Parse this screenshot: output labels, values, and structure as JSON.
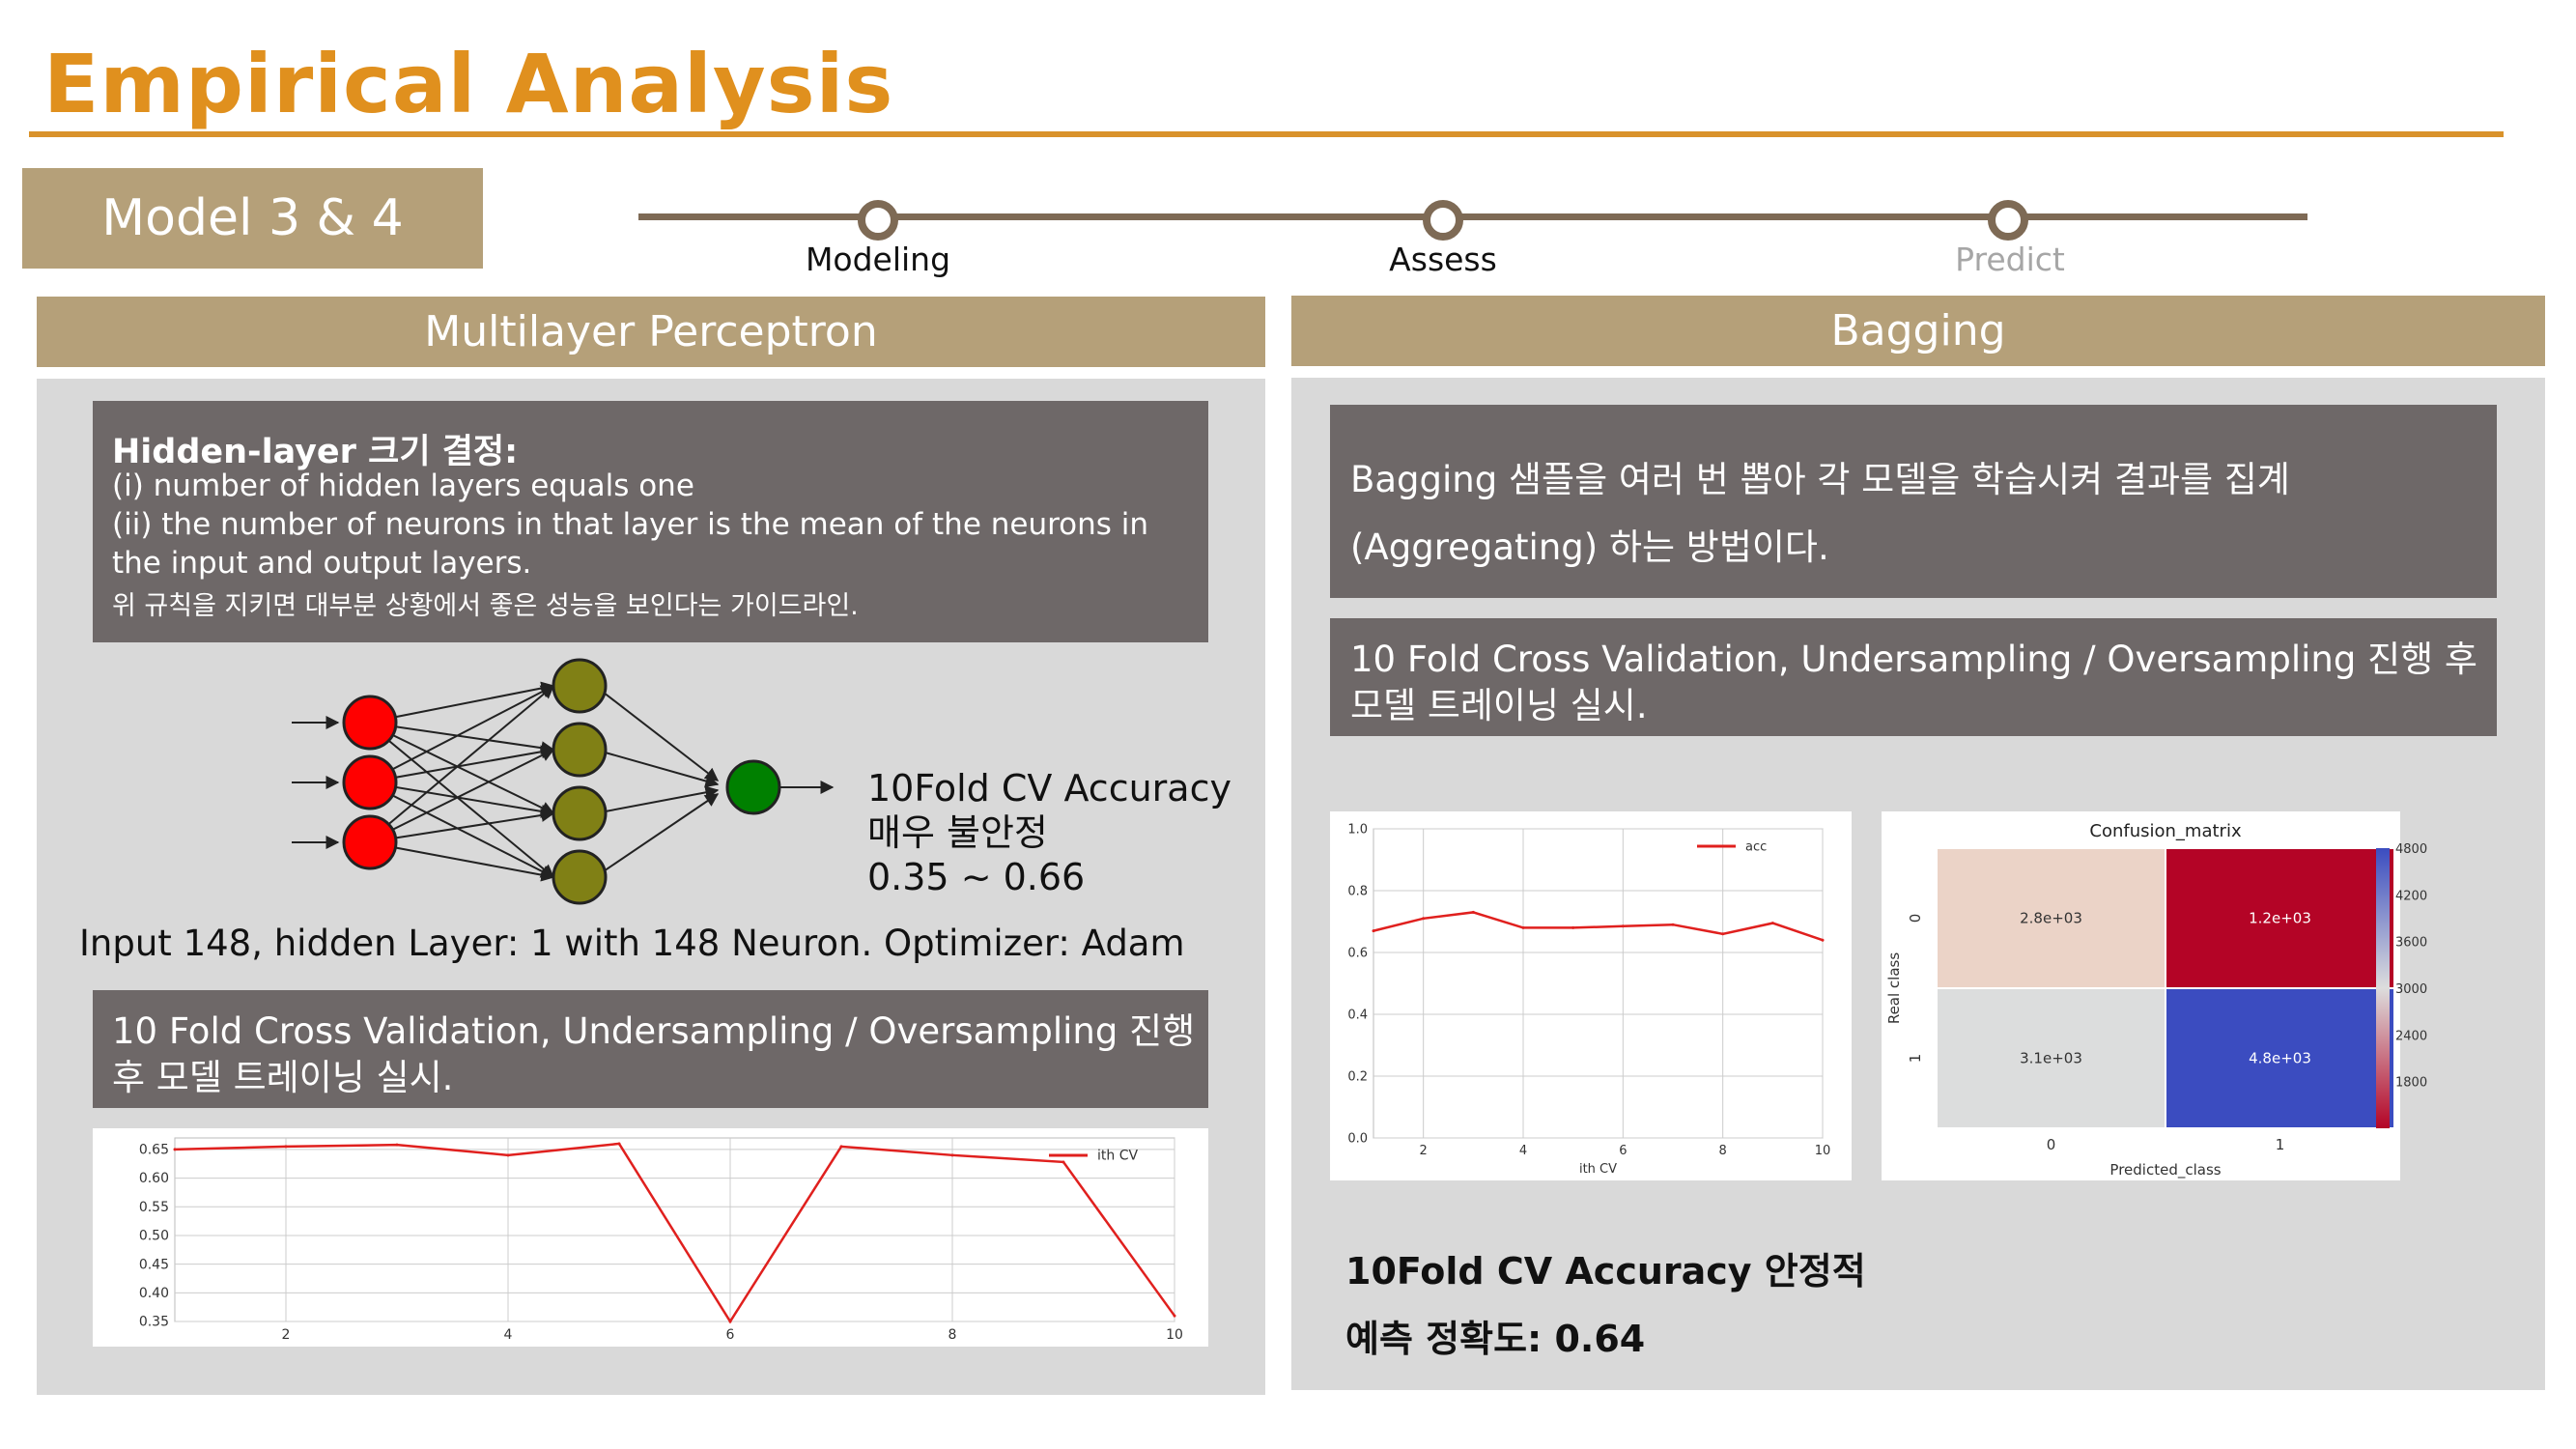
{
  "page": {
    "title": "Empirical Analysis",
    "model_tag": "Model 3 & 4"
  },
  "timeline": {
    "steps": [
      {
        "label": "Modeling",
        "state": "active"
      },
      {
        "label": "Assess",
        "state": "active"
      },
      {
        "label": "Predict",
        "state": "inactive"
      }
    ]
  },
  "left": {
    "header": "Multilayer Perceptron",
    "rule_box": {
      "title": "Hidden-layer 크기 결정:",
      "line1": "(i) number of hidden layers equals one",
      "line2": "(ii) the number of neurons in that layer is the mean of the neurons in",
      "line3": "the input and output layers.",
      "note": "위 규칙을 지키면 대부분 상황에서 좋은 성능을 보인다는 가이드라인."
    },
    "cv_note": {
      "line1": "10Fold CV Accuracy",
      "line2": "매우 불안정",
      "line3": "0.35 ~ 0.66"
    },
    "config": "Input 148, hidden Layer: 1 with 148 Neuron. Optimizer: Adam",
    "training_box": {
      "line1": "10 Fold Cross Validation, Undersampling / Oversampling 진행",
      "line2": "후 모델 트레이닝 실시."
    }
  },
  "right": {
    "header": "Bagging",
    "desc_box": {
      "line1": "Bagging 샘플을 여러 번 뽑아 각 모델을 학습시켜 결과를 집계",
      "line2": "(Aggregating) 하는 방법이다."
    },
    "training_box": {
      "line1": "10 Fold Cross Validation, Undersampling / Oversampling 진행 후",
      "line2": "모델 트레이닝 실시."
    },
    "summary": {
      "line1": "10Fold CV Accuracy 안정적",
      "line2": "예측 정확도: 0.64"
    }
  },
  "chart_data": [
    {
      "type": "line",
      "xlabel": "",
      "ylabel": "",
      "xlim": [
        1,
        10
      ],
      "ylim": [
        0.35,
        0.67
      ],
      "x_ticks": [
        "2",
        "4",
        "6",
        "8",
        "10"
      ],
      "y_ticks": [
        "0.65",
        "0.60",
        "0.55",
        "0.50",
        "0.45",
        "0.40",
        "0.35"
      ],
      "legend": "top-right",
      "grid": true,
      "series": [
        {
          "name": "ith CV",
          "color": "#E0201E",
          "x": [
            1,
            2,
            3,
            4,
            5,
            6,
            7,
            8,
            9,
            10
          ],
          "values": [
            0.65,
            0.655,
            0.658,
            0.64,
            0.66,
            0.35,
            0.655,
            0.64,
            0.628,
            0.36
          ]
        }
      ]
    },
    {
      "type": "line",
      "xlabel": "ith CV",
      "ylabel": "",
      "xlim": [
        1,
        10
      ],
      "ylim": [
        0.0,
        1.0
      ],
      "x_ticks": [
        "2",
        "4",
        "6",
        "8",
        "10"
      ],
      "y_ticks": [
        "1.0",
        "0.8",
        "0.6",
        "0.4",
        "0.2",
        "0.0"
      ],
      "legend": "top-right",
      "grid": true,
      "series": [
        {
          "name": "acc",
          "color": "#E0201E",
          "x": [
            1,
            2,
            3,
            4,
            5,
            6,
            7,
            8,
            9,
            10
          ],
          "values": [
            0.67,
            0.71,
            0.73,
            0.68,
            0.68,
            0.685,
            0.69,
            0.66,
            0.695,
            0.64
          ]
        }
      ]
    },
    {
      "type": "heatmap",
      "title": "Confusion_matrix",
      "xlabel": "Predicted_class",
      "ylabel": "Real class",
      "x_categories": [
        "0",
        "1"
      ],
      "y_categories": [
        "0",
        "1"
      ],
      "cells": [
        {
          "row": 0,
          "col": 0,
          "value": 2800,
          "label": "2.8e+03",
          "color": "#EBD3C7"
        },
        {
          "row": 0,
          "col": 1,
          "value": 1200,
          "label": "1.2e+03",
          "color": "#B40426"
        },
        {
          "row": 1,
          "col": 0,
          "value": 3100,
          "label": "3.1e+03",
          "color": "#DCDDDD"
        },
        {
          "row": 1,
          "col": 1,
          "value": 4800,
          "label": "4.8e+03",
          "color": "#3B4CC0"
        }
      ],
      "colorbar_ticks": [
        "4800",
        "4200",
        "3600",
        "3000",
        "2400",
        "1800"
      ],
      "colorbar_range": [
        1200,
        4800
      ]
    }
  ]
}
